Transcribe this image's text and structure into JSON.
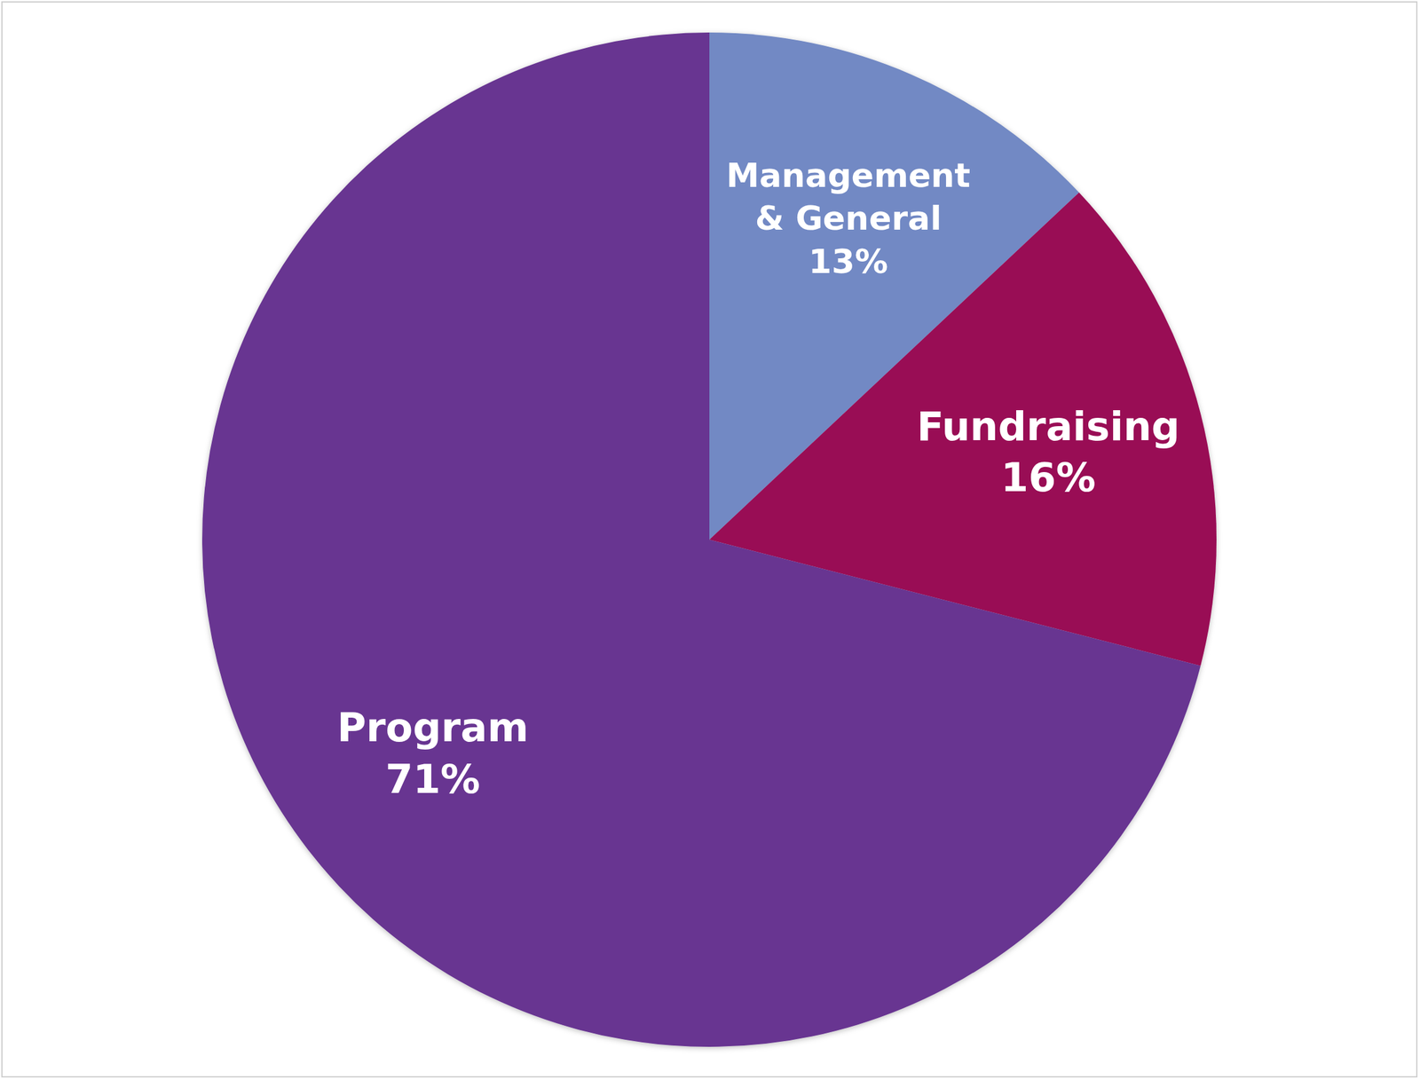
{
  "chart_data": {
    "type": "pie",
    "categories": [
      "Management & General",
      "Fundraising",
      "Program"
    ],
    "values": [
      13,
      16,
      71
    ],
    "value_labels": [
      "13%",
      "16%",
      "71%"
    ],
    "colors": [
      "#7289c4",
      "#990a55",
      "#673591"
    ],
    "data_labels": true
  }
}
